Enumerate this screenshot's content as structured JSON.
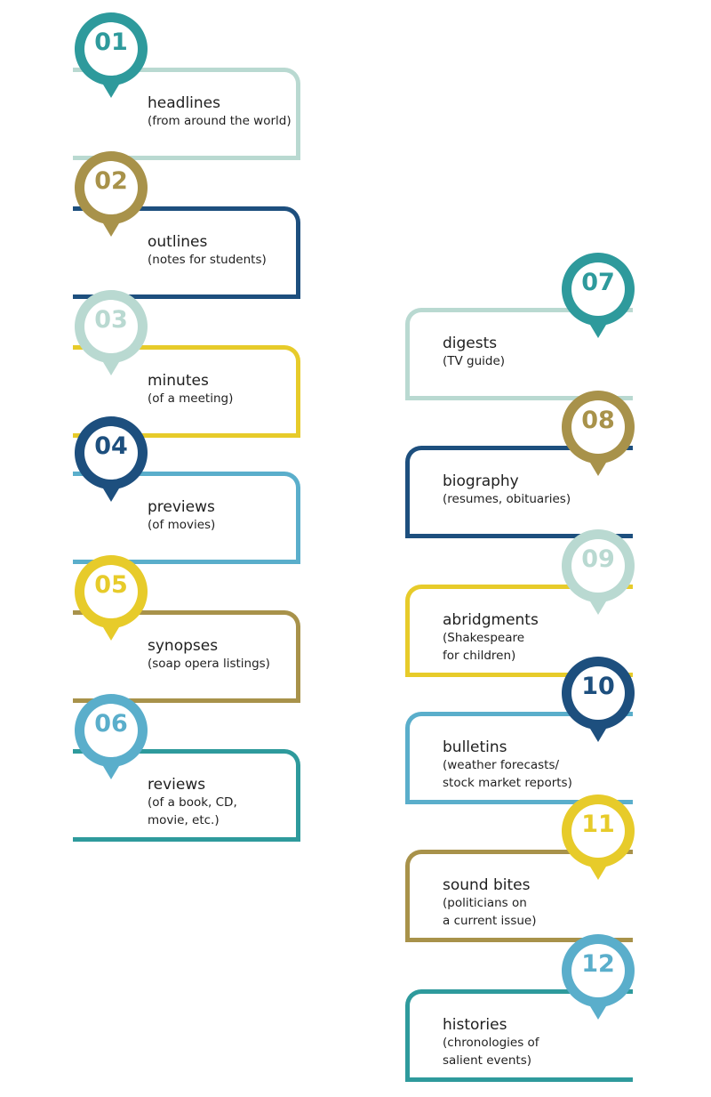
{
  "colors": {
    "teal": "#2e9a9c",
    "olive": "#a8924a",
    "light_mint": "#b9d9d1",
    "navy": "#1d4f7e",
    "sky": "#5aaecb",
    "yellow": "#e7cb2a"
  },
  "items": [
    {
      "num": "01",
      "title": "headlines",
      "sub": "(from around the world)",
      "pin_color": "#2e9a9c",
      "box_color": "#b9d9d1",
      "side": "left"
    },
    {
      "num": "02",
      "title": "outlines",
      "sub": "(notes for students)",
      "pin_color": "#a8924a",
      "box_color": "#1d4f7e",
      "side": "left"
    },
    {
      "num": "03",
      "title": "minutes",
      "sub": "(of a meeting)",
      "pin_color": "#b9d9d1",
      "box_color": "#e7cb2a",
      "side": "left"
    },
    {
      "num": "04",
      "title": "previews",
      "sub": "(of movies)",
      "pin_color": "#1d4f7e",
      "box_color": "#5aaecb",
      "side": "left"
    },
    {
      "num": "05",
      "title": "synopses",
      "sub": "(soap opera listings)",
      "pin_color": "#e7cb2a",
      "box_color": "#a8924a",
      "side": "left"
    },
    {
      "num": "06",
      "title": "reviews",
      "sub": "(of a book, CD,\nmovie, etc.)",
      "pin_color": "#5aaecb",
      "box_color": "#2e9a9c",
      "side": "left"
    },
    {
      "num": "07",
      "title": "digests",
      "sub": "(TV guide)",
      "pin_color": "#2e9a9c",
      "box_color": "#b9d9d1",
      "side": "right"
    },
    {
      "num": "08",
      "title": "biography",
      "sub": "(resumes, obituaries)",
      "pin_color": "#a8924a",
      "box_color": "#1d4f7e",
      "side": "right"
    },
    {
      "num": "09",
      "title": "abridgments",
      "sub": "(Shakespeare\nfor children)",
      "pin_color": "#b9d9d1",
      "box_color": "#e7cb2a",
      "side": "right"
    },
    {
      "num": "10",
      "title": "bulletins",
      "sub": "(weather forecasts/\nstock market reports)",
      "pin_color": "#1d4f7e",
      "box_color": "#5aaecb",
      "side": "right"
    },
    {
      "num": "11",
      "title": "sound bites",
      "sub": "(politicians on\na current issue)",
      "pin_color": "#e7cb2a",
      "box_color": "#a8924a",
      "side": "right"
    },
    {
      "num": "12",
      "title": "histories",
      "sub": "(chronologies of\nsalient events)",
      "pin_color": "#5aaecb",
      "box_color": "#2e9a9c",
      "side": "right"
    }
  ]
}
